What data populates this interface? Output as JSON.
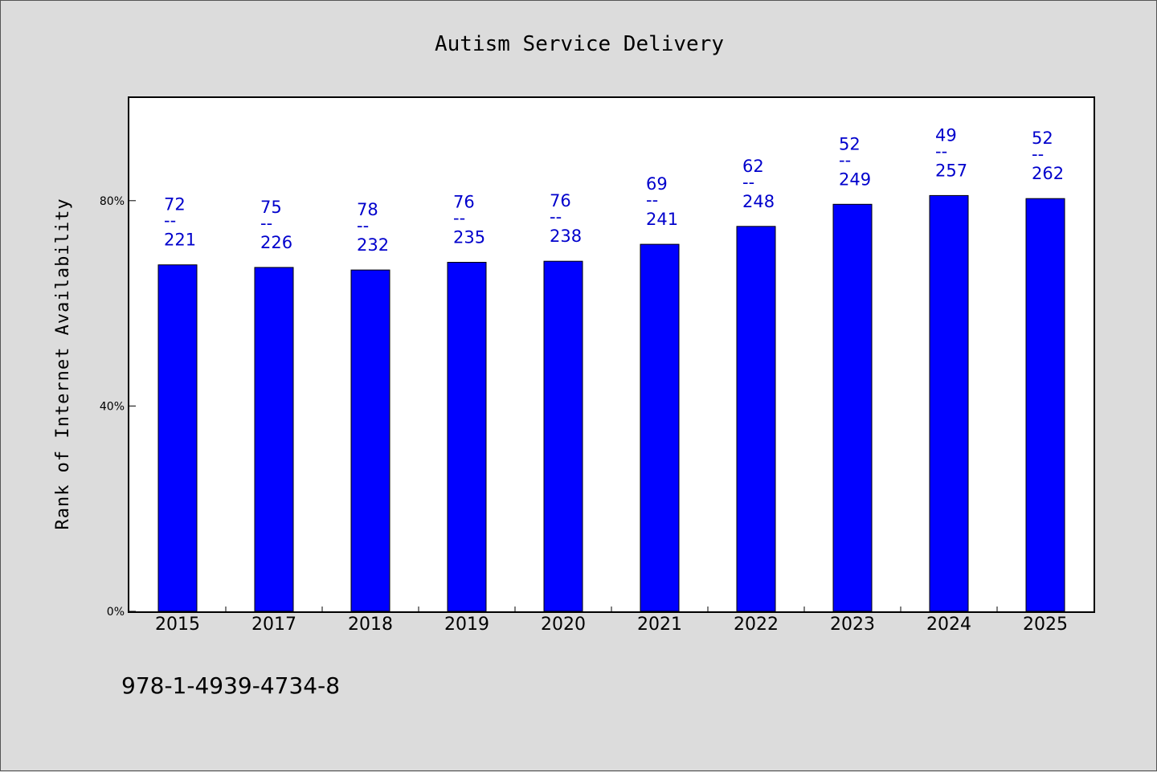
{
  "chart_data": {
    "type": "bar",
    "title": "Autism Service Delivery",
    "xlabel": "",
    "ylabel": "Rank of Internet Availability",
    "categories": [
      "2015",
      "2017",
      "2018",
      "2019",
      "2020",
      "2021",
      "2022",
      "2023",
      "2024",
      "2025"
    ],
    "values": [
      67.5,
      67.0,
      66.5,
      68.0,
      68.2,
      71.5,
      75.0,
      79.3,
      81.0,
      80.4
    ],
    "data_labels": [
      {
        "top": "72",
        "sep": "--",
        "bottom": "221"
      },
      {
        "top": "75",
        "sep": "--",
        "bottom": "226"
      },
      {
        "top": "78",
        "sep": "--",
        "bottom": "232"
      },
      {
        "top": "76",
        "sep": "--",
        "bottom": "235"
      },
      {
        "top": "76",
        "sep": "--",
        "bottom": "238"
      },
      {
        "top": "69",
        "sep": "--",
        "bottom": "241"
      },
      {
        "top": "62",
        "sep": "--",
        "bottom": "248"
      },
      {
        "top": "52",
        "sep": "--",
        "bottom": "249"
      },
      {
        "top": "49",
        "sep": "--",
        "bottom": "257"
      },
      {
        "top": "52",
        "sep": "--",
        "bottom": "262"
      }
    ],
    "yticks": [
      {
        "value": 0,
        "label": "0%"
      },
      {
        "value": 40,
        "label": "40%"
      },
      {
        "value": 80,
        "label": "80%"
      }
    ],
    "ylim": [
      0,
      100
    ],
    "grid": false,
    "legend": "none",
    "colors": {
      "bar": "#0000ff",
      "bar_edge": "#000000",
      "label": "#0000cc",
      "background": "#dcdcdc",
      "plot_bg": "#ffffff"
    }
  },
  "footer": {
    "isbn": "978-1-4939-4734-8"
  }
}
